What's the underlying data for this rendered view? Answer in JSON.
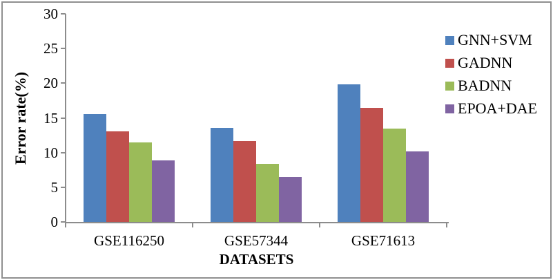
{
  "figure": {
    "background": "#ffffff",
    "frame_color": "#8f8f8f",
    "axis_color": "#8c8c8c",
    "text_color": "#000000"
  },
  "chart_data": {
    "type": "bar",
    "title": "",
    "categories": [
      "GSE116250",
      "GSE57344",
      "GSE71613"
    ],
    "series": [
      {
        "name": "GNN+SVM",
        "color": "#4F81BD",
        "values": [
          15.5,
          13.6,
          19.8
        ]
      },
      {
        "name": "GADNN",
        "color": "#C0504D",
        "values": [
          13.1,
          11.7,
          16.4
        ]
      },
      {
        "name": "BADNN",
        "color": "#9BBB59",
        "values": [
          11.5,
          8.4,
          13.5
        ]
      },
      {
        "name": "EPOA+DAE",
        "color": "#8064A2",
        "values": [
          8.9,
          6.5,
          10.2
        ]
      }
    ],
    "xlabel": "DATASETS",
    "ylabel": "Error rate(%)",
    "ylim": [
      0,
      30
    ],
    "yticks": [
      0,
      5,
      10,
      15,
      20,
      25,
      30
    ],
    "grid": false,
    "legend_position": "right"
  }
}
